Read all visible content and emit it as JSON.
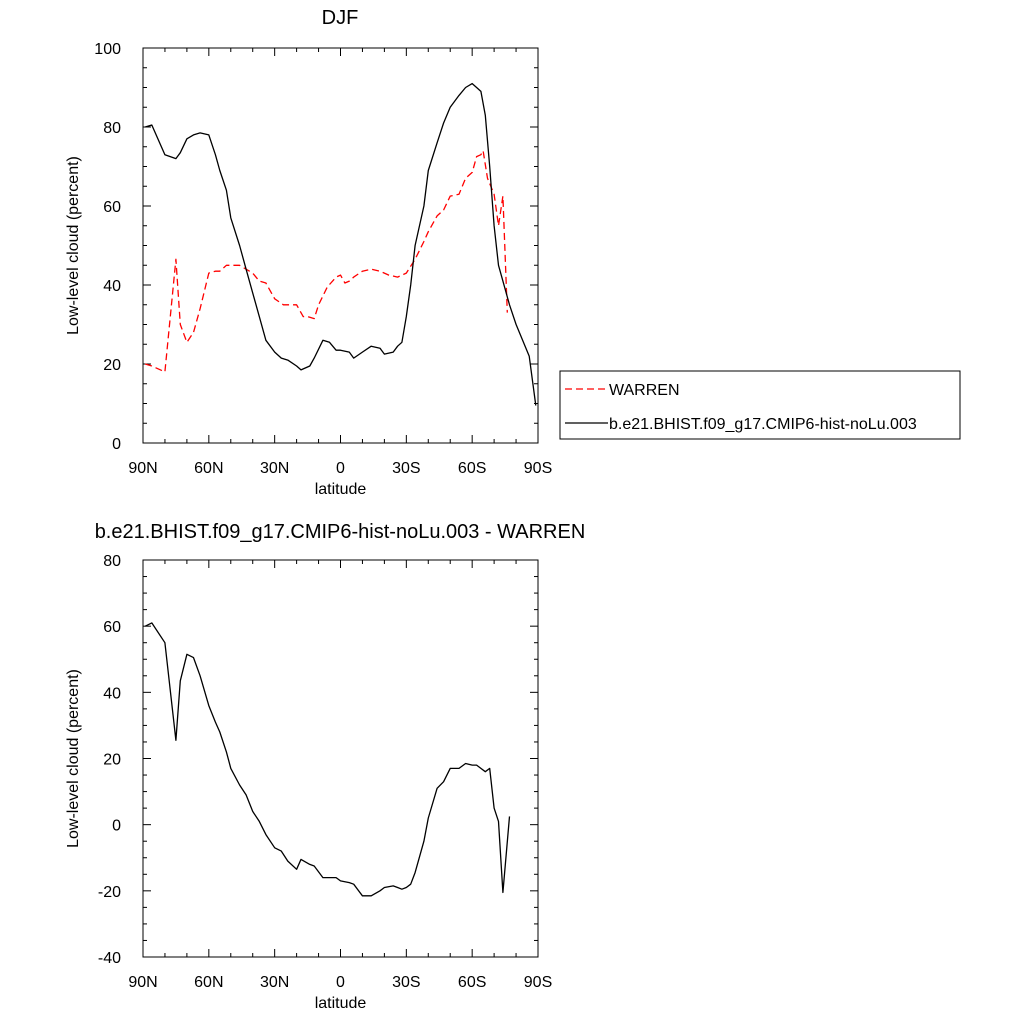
{
  "chart_data": [
    {
      "type": "line",
      "title": "DJF",
      "xlabel": "latitude",
      "ylabel": "Low-level cloud (percent)",
      "xlim": [
        90,
        -90
      ],
      "ylim": [
        0,
        100
      ],
      "x_ticks": [
        {
          "value": 90,
          "label": "90N"
        },
        {
          "value": 60,
          "label": "60N"
        },
        {
          "value": 30,
          "label": "30N"
        },
        {
          "value": 0,
          "label": "0"
        },
        {
          "value": -30,
          "label": "30S"
        },
        {
          "value": -60,
          "label": "60S"
        },
        {
          "value": -90,
          "label": "90S"
        }
      ],
      "y_ticks": [
        {
          "value": 0,
          "label": "0"
        },
        {
          "value": 20,
          "label": "20"
        },
        {
          "value": 40,
          "label": "40"
        },
        {
          "value": 60,
          "label": "60"
        },
        {
          "value": 80,
          "label": "80"
        },
        {
          "value": 100,
          "label": "100"
        }
      ],
      "legend_position": "right",
      "series": [
        {
          "name": "WARREN",
          "color": "#ff0000",
          "dash": "dashed",
          "x": [
            89,
            86,
            80,
            75,
            73,
            70,
            67,
            64,
            60,
            57,
            55,
            52,
            50,
            46,
            43,
            40,
            37,
            34,
            30,
            26,
            23,
            20,
            17,
            15,
            12,
            10,
            6,
            2,
            0,
            -2,
            -4,
            -6,
            -10,
            -14,
            -18,
            -22,
            -26,
            -30,
            -34,
            -38,
            -40,
            -44,
            -47,
            -50,
            -54,
            -57,
            -60,
            -62,
            -64,
            -65,
            -67,
            -70,
            -72,
            -74,
            -76
          ],
          "y": [
            20,
            19.5,
            18,
            46.5,
            30,
            25.5,
            28,
            34,
            43,
            43.5,
            43.5,
            45,
            45,
            45,
            44,
            43,
            41,
            40.5,
            36.5,
            35,
            35,
            35,
            32,
            32,
            31.5,
            35,
            39.5,
            42,
            42.5,
            40.5,
            41,
            42,
            43.5,
            44,
            43.5,
            42.5,
            42,
            43,
            46.5,
            51,
            53.5,
            57.5,
            59,
            62.5,
            63,
            67,
            68.5,
            72.5,
            73,
            74,
            67,
            63,
            55,
            62.5,
            33
          ]
        },
        {
          "name": "b.e21.BHIST.f09_g17.CMIP6-hist-noLu.003",
          "color": "#000000",
          "dash": "solid",
          "x": [
            89,
            86,
            80,
            75,
            73,
            70,
            67,
            64,
            60,
            57,
            55,
            52,
            50,
            46,
            43,
            40,
            37,
            34,
            30,
            27,
            24,
            20,
            18,
            14,
            12,
            8,
            5,
            2,
            0,
            -4,
            -6,
            -10,
            -14,
            -18,
            -20,
            -24,
            -26,
            -28,
            -30,
            -32,
            -34,
            -38,
            -40,
            -44,
            -47,
            -50,
            -54,
            -57,
            -60,
            -62,
            -64,
            -66,
            -68,
            -70,
            -72,
            -74,
            -77,
            -80,
            -86,
            -89
          ],
          "y": [
            80,
            80.5,
            73,
            72,
            73.5,
            77,
            78,
            78.5,
            78,
            73,
            69,
            64,
            57,
            50,
            44,
            38,
            32,
            26,
            23,
            21.5,
            21,
            19.5,
            18.5,
            19.5,
            21.5,
            26,
            25.5,
            23.5,
            23.5,
            23,
            21.5,
            23,
            24.5,
            24,
            22.5,
            23,
            24.5,
            25.5,
            32,
            40,
            50,
            60,
            69,
            76,
            81,
            85,
            88,
            90,
            91,
            90,
            89,
            83,
            70,
            55,
            45,
            41,
            35,
            30,
            22,
            9.5
          ]
        }
      ]
    },
    {
      "type": "line",
      "title": "b.e21.BHIST.f09_g17.CMIP6-hist-noLu.003 - WARREN",
      "xlabel": "latitude",
      "ylabel": "Low-level cloud (percent)",
      "xlim": [
        90,
        -90
      ],
      "ylim": [
        -40,
        80
      ],
      "x_ticks": [
        {
          "value": 90,
          "label": "90N"
        },
        {
          "value": 60,
          "label": "60N"
        },
        {
          "value": 30,
          "label": "30N"
        },
        {
          "value": 0,
          "label": "0"
        },
        {
          "value": -30,
          "label": "30S"
        },
        {
          "value": -60,
          "label": "60S"
        },
        {
          "value": -90,
          "label": "90S"
        }
      ],
      "y_ticks": [
        {
          "value": -40,
          "label": "-40"
        },
        {
          "value": -20,
          "label": "-20"
        },
        {
          "value": 0,
          "label": "0"
        },
        {
          "value": 20,
          "label": "20"
        },
        {
          "value": 40,
          "label": "40"
        },
        {
          "value": 60,
          "label": "60"
        },
        {
          "value": 80,
          "label": "80"
        }
      ],
      "series": [
        {
          "color": "#000000",
          "dash": "solid",
          "x": [
            89,
            86,
            80,
            75,
            73,
            70,
            67,
            64,
            60,
            57,
            55,
            52,
            50,
            46,
            43,
            40,
            37,
            34,
            30,
            27,
            24,
            20,
            18,
            14,
            12,
            8,
            5,
            2,
            0,
            -4,
            -6,
            -10,
            -14,
            -18,
            -20,
            -24,
            -26,
            -28,
            -30,
            -32,
            -34,
            -38,
            -40,
            -44,
            -47,
            -50,
            -54,
            -57,
            -60,
            -62,
            -64,
            -66,
            -68,
            -70,
            -72,
            -74,
            -77
          ],
          "y": [
            60,
            61,
            55,
            25.5,
            43.5,
            51.5,
            50.5,
            45,
            36,
            31,
            28,
            22,
            17,
            12,
            9,
            4,
            1,
            -3,
            -7,
            -8,
            -11,
            -13.5,
            -10.5,
            -12,
            -12.5,
            -16,
            -16,
            -16,
            -17,
            -17.5,
            -18,
            -21.5,
            -21.5,
            -20,
            -19,
            -18.5,
            -19,
            -19.5,
            -19,
            -18,
            -14.5,
            -5,
            2,
            11,
            13,
            17,
            17,
            18.5,
            18,
            18,
            17,
            16,
            17,
            5,
            1,
            -20.5,
            2.5
          ]
        }
      ]
    }
  ]
}
